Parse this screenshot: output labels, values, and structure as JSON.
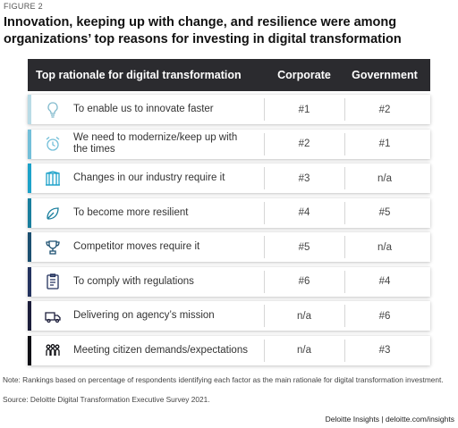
{
  "figure_label": "FIGURE 2",
  "title": "Innovation, keeping up with change, and resilience were among organizations’ top reasons for investing in digital transformation",
  "note": "Note: Rankings based on percentage of respondents identifying each factor as the main rationale for digital transformation investment.",
  "source": "Source: Deloitte Digital Transformation Executive Survey 2021.",
  "credit": "Deloitte Insights | deloitte.com/insights",
  "chart_data": {
    "type": "table",
    "columns": [
      "Top rationale for digital transformation",
      "Corporate",
      "Government"
    ],
    "rows": [
      {
        "rationale": "To enable us to innovate faster",
        "corporate": "#1",
        "government": "#2",
        "icon": "lightbulb-icon",
        "color": "#b9dbe6"
      },
      {
        "rationale": "We need to modernize/keep up with the times",
        "corporate": "#2",
        "government": "#1",
        "icon": "alarm-clock-icon",
        "color": "#73bfd9"
      },
      {
        "rationale": "Changes in our industry require it",
        "corporate": "#3",
        "government": "n/a",
        "icon": "building-icon",
        "color": "#1da2c9"
      },
      {
        "rationale": "To become more resilient",
        "corporate": "#4",
        "government": "#5",
        "icon": "leaf-icon",
        "color": "#197e9d"
      },
      {
        "rationale": "Competitor moves require it",
        "corporate": "#5",
        "government": "n/a",
        "icon": "trophy-icon",
        "color": "#1b4f70"
      },
      {
        "rationale": "To comply with regulations",
        "corporate": "#6",
        "government": "#4",
        "icon": "clipboard-icon",
        "color": "#23325e"
      },
      {
        "rationale": "Delivering on agency’s mission",
        "corporate": "n/a",
        "government": "#6",
        "icon": "delivery-truck-icon",
        "color": "#1b1d3a"
      },
      {
        "rationale": "Meeting citizen demands/expectations",
        "corporate": "n/a",
        "government": "#3",
        "icon": "people-group-icon",
        "color": "#0f0f14"
      }
    ]
  }
}
